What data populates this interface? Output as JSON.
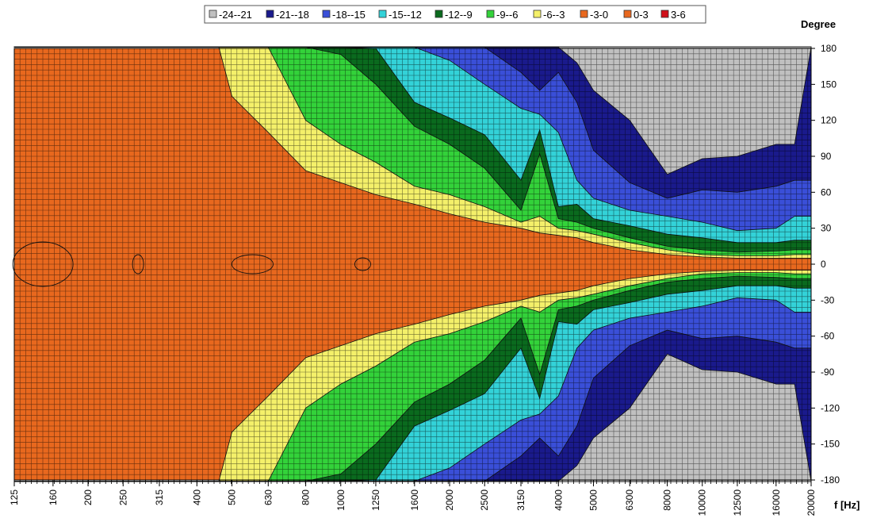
{
  "chart_data": {
    "type": "heatmap",
    "subtype": "directivity contour plot",
    "title": "",
    "xlabel": "f [Hz]",
    "ylabel": "Degree",
    "x_scale": "log",
    "x_ticks": [
      125,
      160,
      200,
      250,
      315,
      400,
      500,
      630,
      800,
      1000,
      1250,
      1600,
      2000,
      2500,
      3150,
      4000,
      5000,
      6300,
      8000,
      10000,
      12500,
      16000,
      20000
    ],
    "x_tick_labels": [
      "125",
      "160",
      "200",
      "250",
      "315",
      "400",
      "500",
      "630",
      "800",
      "1000",
      "1250",
      "1600",
      "2000",
      "2500",
      "3150",
      "4000",
      "5000",
      "6300",
      "8000",
      "10000",
      "12500",
      "16000",
      "20000"
    ],
    "xlim": [
      125,
      20000
    ],
    "y_ticks": [
      180,
      150,
      120,
      90,
      60,
      30,
      0,
      -30,
      -60,
      -90,
      -120,
      -150,
      -180
    ],
    "y_tick_labels": [
      "180",
      "150",
      "120",
      "90",
      "60",
      "30",
      "0",
      "-30",
      "-60",
      "-90",
      "-120",
      "-150",
      "-180"
    ],
    "ylim": [
      -180,
      180
    ],
    "legend_position": "top-center",
    "grid": true,
    "levels": [
      {
        "label": "-24--21",
        "color": "#c0c0c0"
      },
      {
        "label": "-21--18",
        "color": "#1a1a8c"
      },
      {
        "label": "-18--15",
        "color": "#3a4fd8"
      },
      {
        "label": "-15--12",
        "color": "#33d2d8"
      },
      {
        "label": "-12--9",
        "color": "#0a6a1e"
      },
      {
        "label": "-9--6",
        "color": "#33d23a"
      },
      {
        "label": "-6--3",
        "color": "#f4f06a"
      },
      {
        "label": "-3-0",
        "color": "#e8681e"
      },
      {
        "label": "0-3",
        "color": "#e8681e"
      },
      {
        "label": "3-6",
        "color": "#d0101a"
      }
    ],
    "boundaries_deg_by_frequency": {
      "frequency": [
        125,
        160,
        200,
        250,
        315,
        400,
        460,
        500,
        630,
        800,
        1000,
        1250,
        1600,
        2000,
        2500,
        3150,
        3550,
        4000,
        4500,
        5000,
        6300,
        8000,
        10000,
        12500,
        16000,
        18000,
        20000
      ],
      "minus_3": [
        181,
        181,
        181,
        181,
        181,
        181,
        181,
        140,
        110,
        78,
        68,
        58,
        50,
        42,
        35,
        30,
        26,
        24,
        22,
        18,
        12,
        8,
        6,
        5,
        5,
        5,
        5
      ],
      "minus_6": [
        181,
        181,
        181,
        181,
        181,
        181,
        181,
        181,
        181,
        120,
        100,
        85,
        65,
        58,
        48,
        35,
        40,
        30,
        28,
        25,
        18,
        12,
        8,
        7,
        7,
        8,
        8
      ],
      "minus_9": [
        181,
        181,
        181,
        181,
        181,
        181,
        181,
        181,
        181,
        181,
        175,
        150,
        115,
        100,
        80,
        45,
        92,
        38,
        35,
        30,
        22,
        15,
        12,
        10,
        11,
        12,
        12
      ],
      "minus_12": [
        181,
        181,
        181,
        181,
        181,
        181,
        181,
        181,
        181,
        181,
        181,
        180,
        135,
        122,
        108,
        70,
        112,
        48,
        50,
        38,
        32,
        25,
        22,
        18,
        18,
        20,
        20
      ],
      "minus_15": [
        181,
        181,
        181,
        181,
        181,
        181,
        181,
        181,
        181,
        181,
        181,
        181,
        181,
        170,
        150,
        130,
        125,
        110,
        70,
        55,
        45,
        40,
        35,
        28,
        30,
        40,
        40
      ],
      "minus_18": [
        181,
        181,
        181,
        181,
        181,
        181,
        181,
        181,
        181,
        181,
        181,
        181,
        181,
        181,
        181,
        160,
        145,
        160,
        135,
        95,
        68,
        55,
        62,
        60,
        65,
        70,
        70
      ],
      "minus_21": [
        181,
        181,
        181,
        181,
        181,
        181,
        181,
        181,
        181,
        181,
        181,
        181,
        181,
        181,
        181,
        181,
        181,
        181,
        168,
        145,
        120,
        75,
        88,
        90,
        100,
        100,
        181
      ],
      "minus_24": [
        181,
        181,
        181,
        181,
        181,
        181,
        181,
        181,
        181,
        181,
        181,
        181,
        181,
        181,
        181,
        181,
        181,
        181,
        181,
        181,
        181,
        181,
        181,
        181,
        181,
        181,
        181
      ]
    },
    "contour_notes": "Symmetric about 0 degrees; the 0-3 dB areas near 0 degrees at 125-200, 315, 500-630 and 1000-1250 Hz are outlined by thin black contour lines."
  }
}
